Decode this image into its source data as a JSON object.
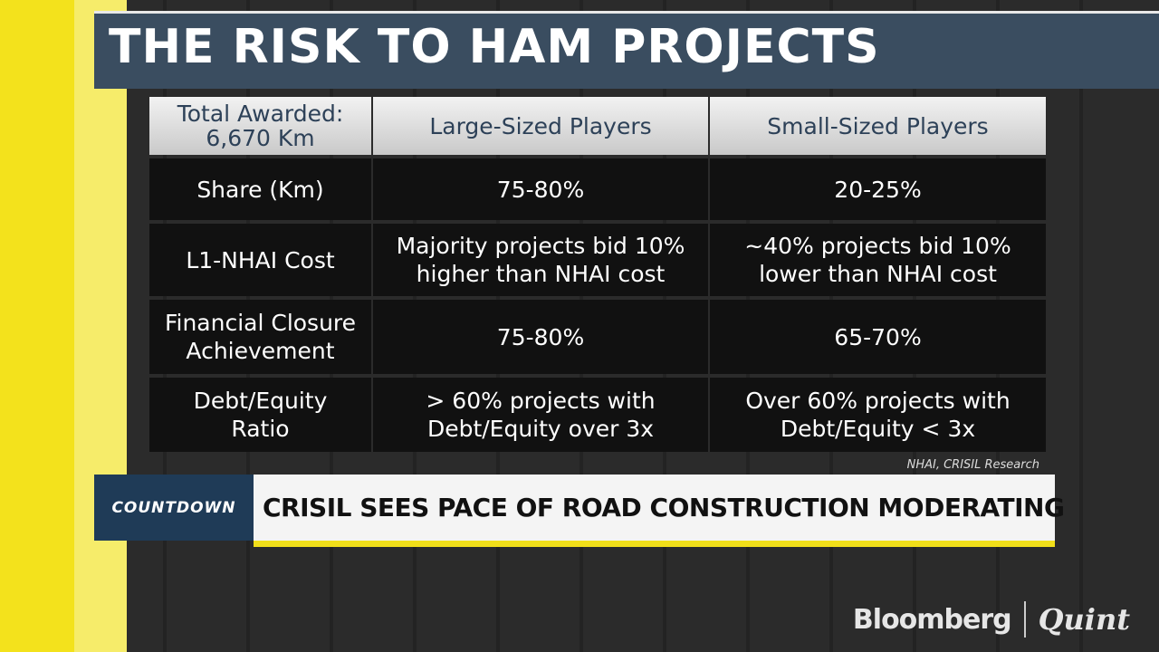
{
  "header": {
    "title": "THE RISK TO HAM PROJECTS"
  },
  "table": {
    "header": [
      [
        "Total Awarded:",
        "6,670 Km"
      ],
      [
        "Large-Sized Players"
      ],
      [
        "Small-Sized Players"
      ]
    ],
    "rows": [
      [
        [
          "Share (Km)"
        ],
        [
          "75-80%"
        ],
        [
          "20-25%"
        ]
      ],
      [
        [
          "L1-NHAI Cost"
        ],
        [
          "Majority projects  bid 10%",
          "higher than NHAI cost"
        ],
        [
          "~40% projects bid 10%",
          "lower than NHAI cost"
        ]
      ],
      [
        [
          "Financial Closure",
          "Achievement"
        ],
        [
          "75-80%"
        ],
        [
          "65-70%"
        ]
      ],
      [
        [
          "Debt/Equity",
          "Ratio"
        ],
        [
          "> 60% projects with",
          "Debt/Equity over 3x"
        ],
        [
          "Over 60% projects with",
          "Debt/Equity < 3x"
        ]
      ]
    ]
  },
  "source": "NHAI, CRISIL Research",
  "ticker": {
    "tag": "COUNTDOWN",
    "headline": "CRISIL SEES PACE OF ROAD CONSTRUCTION MODERATING"
  },
  "logo": {
    "brand": "Bloomberg",
    "partner": "Quint"
  }
}
